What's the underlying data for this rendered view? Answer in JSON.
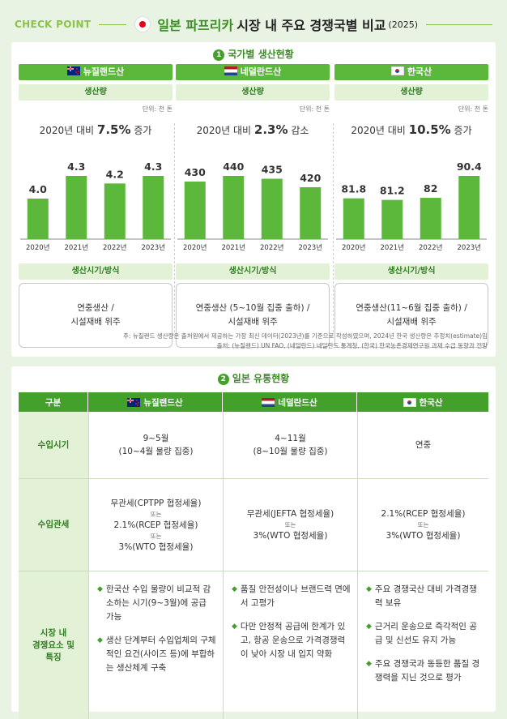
{
  "header": {
    "check_point": "CHECK POINT",
    "title_green": "일본 파프리카",
    "title_black": "시장 내 주요 경쟁국별 비교",
    "year": "(2025)"
  },
  "section1": {
    "number": "1",
    "title": "국가별 생산현황",
    "unit": "단위: 천 톤",
    "volume_label": "생산량",
    "method_label": "생산시기/방식",
    "countries": [
      {
        "name": "뉴질랜드산",
        "flag": "nz-flag",
        "change_prefix": "2020년 대비 ",
        "change_value": "7.5%",
        "change_suffix": " 증가",
        "method_line1": "연중생산 /",
        "method_line2": "시설재배 위주"
      },
      {
        "name": "네덜란드산",
        "flag": "nl-flag",
        "change_prefix": "2020년 대비 ",
        "change_value": "2.3%",
        "change_suffix": " 감소",
        "method_line1": "연중생산 (5~10월 집중 출하) /",
        "method_line2": "시설재배 위주"
      },
      {
        "name": "한국산",
        "flag": "kr-flag",
        "change_prefix": "2020년 대비 ",
        "change_value": "10.5%",
        "change_suffix": " 증가",
        "method_line1": "연중생산(11~6월 집중 출하) /",
        "method_line2": "시설재배 위주"
      }
    ],
    "note_line1": "주: 뉴질랜드 생산량은 출처원에서 제공하는 가장 최신 데이터(2023년)를 기준으로 작성하였으며, 2024년 한국 생산량은 추정치(estimate)임",
    "note_line2": "출처: (뉴질랜드) UN FAO, (네덜란드) 네덜란드 통계청, (한국) 한국농촌경제연구원 과제 수급 동향과 전망"
  },
  "chart_data": [
    {
      "type": "bar",
      "series": [
        {
          "values": [
            4.0,
            4.3,
            4.2,
            4.3
          ]
        }
      ],
      "categories": [
        "2020년",
        "2021년",
        "2022년",
        "2023년"
      ],
      "value_labels": [
        "4.0",
        "4.3",
        "4.2",
        "4.3"
      ],
      "ylim": [
        3.7,
        4.3
      ],
      "color": "#5cb83a"
    },
    {
      "type": "bar",
      "series": [
        {
          "values": [
            430,
            440,
            435,
            420
          ]
        }
      ],
      "categories": [
        "2020년",
        "2021년",
        "2022년",
        "2023년"
      ],
      "value_labels": [
        "430",
        "440",
        "435",
        "420"
      ],
      "ylim": [
        360,
        440
      ],
      "color": "#5cb83a"
    },
    {
      "type": "bar",
      "series": [
        {
          "values": [
            81.8,
            81.2,
            82,
            90.4
          ]
        }
      ],
      "categories": [
        "2020년",
        "2021년",
        "2022년",
        "2023년"
      ],
      "value_labels": [
        "81.8",
        "81.2",
        "82",
        "90.4"
      ],
      "ylim": [
        73,
        90.4
      ],
      "color": "#5cb83a"
    }
  ],
  "section2": {
    "number": "2",
    "title": "일본 유통현황",
    "headers": [
      "구분",
      "뉴질랜드산",
      "네덜란드산",
      "한국산"
    ],
    "row_import_period": {
      "label": "수입시기",
      "nz_line1": "9~5월",
      "nz_line2": "(10~4월 물량 집중)",
      "nl_line1": "4~11월",
      "nl_line2": "(8~10월 물량 집중)",
      "kr": "연중"
    },
    "row_tariff": {
      "label": "수입관세",
      "nz_line1": "무관세(CPTPP 협정세율)",
      "nz_or1": "또는",
      "nz_line2": "2.1%(RCEP 협정세율)",
      "nz_or2": "또는",
      "nz_line3": "3%(WTO 협정세율)",
      "nl_line1": "무관세(JEFTA 협정세율)",
      "nl_or": "또는",
      "nl_line2": "3%(WTO 협정세율)",
      "kr_line1": "2.1%(RCEP 협정세율)",
      "kr_or": "또는",
      "kr_line2": "3%(WTO 협정세율)"
    },
    "row_factors": {
      "label_line1": "시장 내",
      "label_line2": "경쟁요소 및",
      "label_line3": "특징",
      "bullet": "◆",
      "nz": [
        "한국산 수입 물량이 비교적 감소하는 시기(9~3월)에 공급 가능",
        "생산 단계부터 수입업체의 구체적인 요건(사이즈 등)에 부합하는 생산체계 구축"
      ],
      "nl": [
        "품질 안전성이나 브랜드력 면에서 고평가",
        "다만 안정적 공급에 한계가 있고, 항공 운송으로 가격경쟁력이 낮아 시장 내 입지 약화"
      ],
      "kr": [
        "주요 경쟁국산 대비 가격경쟁력 보유",
        "근거리 운송으로 즉각적인 공급 및 신선도 유지 가능",
        "주요 경쟁국과 동등한 품질 경쟁력을 지닌 것으로 평가"
      ]
    }
  }
}
